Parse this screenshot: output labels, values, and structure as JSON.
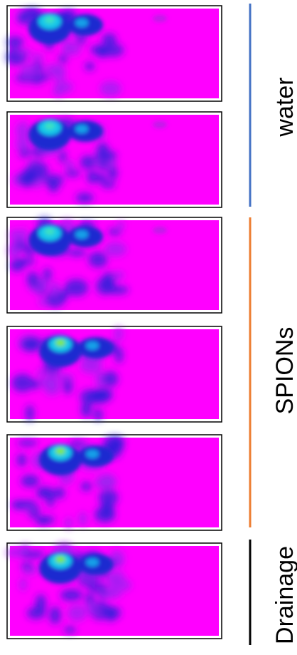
{
  "groups": [
    {
      "label": "water"
    },
    {
      "label": "SPIONs"
    },
    {
      "label": "Drainage"
    }
  ]
}
